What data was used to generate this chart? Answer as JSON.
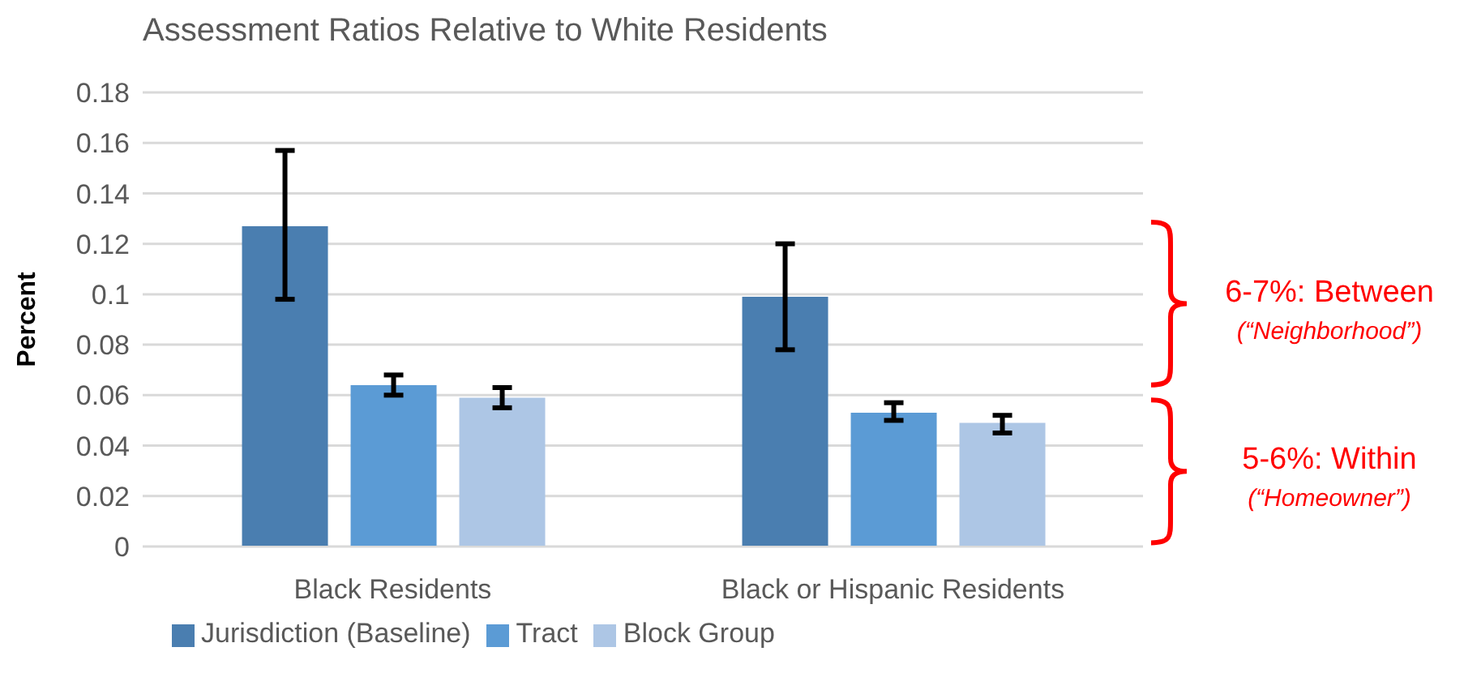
{
  "chart_data": {
    "type": "bar",
    "title": "Assessment Ratios Relative to White Residents",
    "ylabel": "Percent",
    "categories": [
      "Black Residents",
      "Black or Hispanic Residents"
    ],
    "series": [
      {
        "name": "Jurisdiction (Baseline)",
        "color": "#4a7eb0",
        "values": [
          0.127,
          0.099
        ],
        "errors": [
          [
            0.098,
            0.157
          ],
          [
            0.078,
            0.12
          ]
        ]
      },
      {
        "name": "Tract",
        "color": "#5b9bd5",
        "values": [
          0.064,
          0.053
        ],
        "errors": [
          [
            0.06,
            0.068
          ],
          [
            0.05,
            0.057
          ]
        ]
      },
      {
        "name": "Block Group",
        "color": "#adc6e5",
        "values": [
          0.059,
          0.049
        ],
        "errors": [
          [
            0.055,
            0.063
          ],
          [
            0.045,
            0.052
          ]
        ]
      }
    ],
    "ylim": [
      0,
      0.18
    ],
    "yticks": [
      0,
      0.02,
      0.04,
      0.06,
      0.08,
      0.1,
      0.12,
      0.14,
      0.16,
      0.18
    ],
    "grid": "y",
    "legend": "bottom left",
    "annotations": [
      "6-7%: Between",
      "(“Neighborhood”)",
      "5-6%: Within",
      "(“Homeowner”)"
    ]
  }
}
